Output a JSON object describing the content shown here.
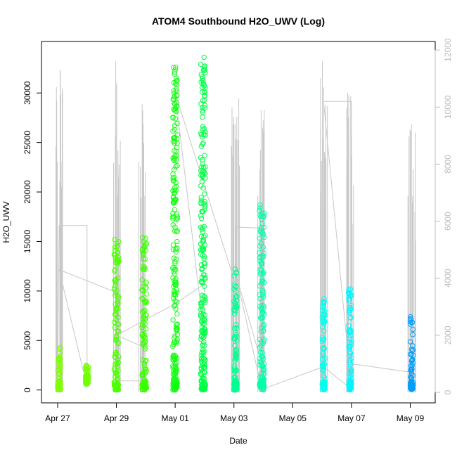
{
  "chart_data": {
    "type": "scatter",
    "title": "ATOM4 Southbound H2O_UWV (Log)",
    "xlabel": "Date",
    "ylabel": "H2O_UWV",
    "x_ticks": [
      "Apr 27",
      "Apr 29",
      "May 01",
      "May 03",
      "May 05",
      "May 07",
      "May 09"
    ],
    "x_tick_days": [
      0,
      2,
      4,
      6,
      8,
      10,
      12
    ],
    "xlim_days": [
      -0.55,
      12.85
    ],
    "y_ticks": [
      0,
      5000,
      10000,
      15000,
      20000,
      25000,
      30000
    ],
    "ylim": [
      -1300,
      35200
    ],
    "y2_ticks": [
      0,
      2000,
      4000,
      6000,
      8000,
      10000,
      12000
    ],
    "y2lim": [
      -370,
      12300
    ],
    "right_axis_color": "#bdbdbd",
    "line_series_color": "#c8c8c8",
    "scatter_clusters": [
      {
        "day": 0.05,
        "min": 0,
        "max": 4300,
        "color": "#7fff00"
      },
      {
        "day": 1.0,
        "min": 600,
        "max": 2500,
        "color": "#72ff00"
      },
      {
        "day": 2.0,
        "min": 0,
        "max": 15200,
        "color": "#4cff00"
      },
      {
        "day": 2.95,
        "min": 0,
        "max": 15400,
        "color": "#3aff00"
      },
      {
        "day": 4.0,
        "min": 0,
        "max": 32600,
        "color": "#12ff11"
      },
      {
        "day": 4.95,
        "min": 0,
        "max": 33600,
        "color": "#00ff45"
      },
      {
        "day": 6.05,
        "min": 0,
        "max": 12200,
        "color": "#00ff92"
      },
      {
        "day": 6.95,
        "min": 0,
        "max": 18700,
        "color": "#00ffa8"
      },
      {
        "day": 9.05,
        "min": 0,
        "max": 9200,
        "color": "#00ffee"
      },
      {
        "day": 9.95,
        "min": 0,
        "max": 10200,
        "color": "#00f5ff"
      },
      {
        "day": 12.05,
        "min": 0,
        "max": 7400,
        "color": "#009fff"
      }
    ],
    "line_spikes": [
      {
        "day": 0.05,
        "max": 11300
      },
      {
        "day": 2.0,
        "max": 11600
      },
      {
        "day": 2.9,
        "max": 10100
      },
      {
        "day": 6.05,
        "max": 10300
      },
      {
        "day": 6.95,
        "max": 9900
      },
      {
        "day": 9.05,
        "max": 11600
      },
      {
        "day": 9.95,
        "max": 10500
      },
      {
        "day": 12.05,
        "max": 9400
      }
    ],
    "line_path": [
      [
        0.0,
        100
      ],
      [
        0.05,
        5850
      ],
      [
        1.0,
        5850
      ],
      [
        1.0,
        200
      ],
      [
        0.05,
        4300
      ],
      [
        2.0,
        3500
      ],
      [
        2.0,
        400
      ],
      [
        2.9,
        400
      ],
      [
        2.9,
        1600
      ],
      [
        2.0,
        2000
      ],
      [
        4.0,
        3100
      ],
      [
        5.0,
        3800
      ],
      [
        5.0,
        1900
      ],
      [
        4.0,
        10500
      ],
      [
        6.05,
        3800
      ],
      [
        6.05,
        5800
      ],
      [
        6.95,
        5750
      ],
      [
        6.95,
        1000
      ],
      [
        6.05,
        4200
      ],
      [
        6.95,
        100
      ],
      [
        9.05,
        900
      ],
      [
        10.0,
        100
      ],
      [
        9.05,
        10200
      ],
      [
        10.0,
        10200
      ],
      [
        10.0,
        1000
      ],
      [
        12.05,
        700
      ],
      [
        12.05,
        100
      ]
    ]
  }
}
